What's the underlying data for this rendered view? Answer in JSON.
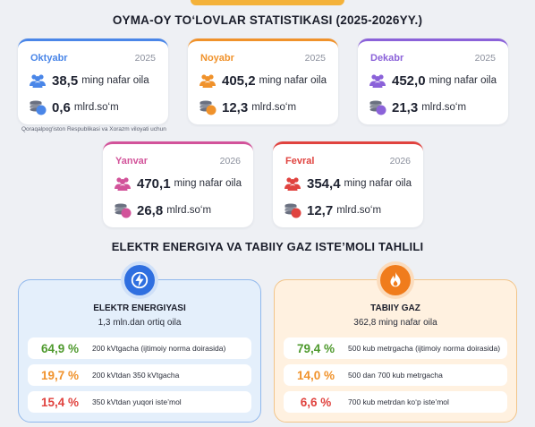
{
  "title_monthly": "OYMA-OY TO‘LOVLAR STATISTIKASI (2025-2026YY.)",
  "note": "Qoraqalpog‘iston Respublikasi va Xorazm viloyati uchun",
  "families_unit": "ming nafar oila",
  "money_unit": "mlrd.so‘m",
  "months": [
    {
      "name": "Oktyabr",
      "year": "2025",
      "families": "38,5",
      "amount": "0,6",
      "color": "#4a86e8"
    },
    {
      "name": "Noyabr",
      "year": "2025",
      "families": "405,2",
      "amount": "12,3",
      "color": "#f0922b"
    },
    {
      "name": "Dekabr",
      "year": "2025",
      "families": "452,0",
      "amount": "21,3",
      "color": "#8b62d9"
    },
    {
      "name": "Yanvar",
      "year": "2026",
      "families": "470,1",
      "amount": "26,8",
      "color": "#d2539a"
    },
    {
      "name": "Fevral",
      "year": "2026",
      "families": "354,4",
      "amount": "12,7",
      "color": "#e0433f"
    }
  ],
  "title_analysis": "ELEKTR ENERGIYA VA TABIIY GAZ ISTE’MOLI TAHLILI",
  "electric": {
    "title": "ELEKTR ENERGIYASI",
    "subtitle": "1,3 mln.dan ortiq oila",
    "rows": [
      {
        "pct": "64,9 %",
        "desc": "200 kVtgacha (ijtimoiy norma doirasida)",
        "color": "#4f9a2e"
      },
      {
        "pct": "19,7 %",
        "desc": "200 kVtdan 350 kVtgacha",
        "color": "#f0922b"
      },
      {
        "pct": "15,4 %",
        "desc": "350 kVtdan yuqori iste’mol",
        "color": "#e0433f"
      }
    ]
  },
  "gas": {
    "title": "TABIIY GAZ",
    "subtitle": "362,8 ming nafar oila",
    "rows": [
      {
        "pct": "79,4 %",
        "desc": "500 kub metrgacha (ijtimoiy norma doirasida)",
        "color": "#4f9a2e"
      },
      {
        "pct": "14,0 %",
        "desc": "500 dan 700 kub metrgacha",
        "color": "#f0922b"
      },
      {
        "pct": "6,6 %",
        "desc": "700 kub metrdan ko‘p iste’mol",
        "color": "#e0433f"
      }
    ]
  },
  "icons": {
    "families": "people-group-icon",
    "money": "coin-stack-icon",
    "electric": "lightning-icon",
    "gas": "flame-icon"
  }
}
